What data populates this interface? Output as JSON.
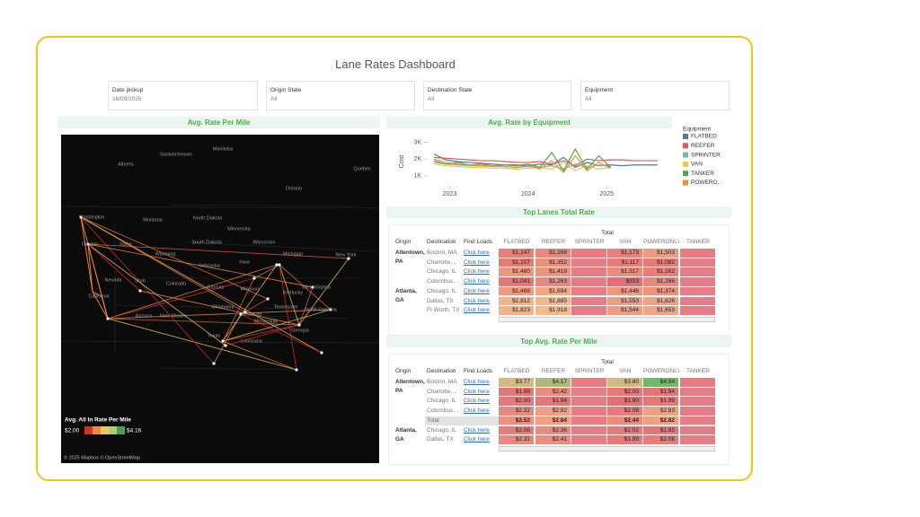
{
  "header": {
    "title": "Lane Rates Dashboard"
  },
  "filters": [
    {
      "label": "Date pickup",
      "value": "16/09/2025"
    },
    {
      "label": "Origin State",
      "value": "All"
    },
    {
      "label": "Destination State",
      "value": "All"
    },
    {
      "label": "Equipment",
      "value": "All"
    }
  ],
  "map": {
    "title": "Avg. Rate Per Mile",
    "labels": [
      "Alberta",
      "Saskatchewan",
      "Manitoba",
      "Ontario",
      "Quebec",
      "Washington",
      "Montana",
      "North Dakota",
      "Minnesota",
      "Oregon",
      "Idaho",
      "Wyoming",
      "South Dakota",
      "Wisconsin",
      "Michigan",
      "New York",
      "Nebraska",
      "Iowa",
      "Nevada",
      "Utah",
      "Colorado",
      "Kansas",
      "Missouri",
      "Kentucky",
      "West Virginia",
      "North Carolina",
      "California",
      "Arizona",
      "New Mexico",
      "Oklahoma",
      "Arkansas",
      "Tennessee",
      "Mississippi",
      "Georgia",
      "Texas",
      "Louisiana"
    ],
    "legend": {
      "title": "Avg. All In Rate Per Mile",
      "min_label": "$2.00",
      "max_label": "$4.16",
      "colors": [
        "#d7302b",
        "#f08a3c",
        "#f5c45e",
        "#a9cf72",
        "#4f9a4d"
      ]
    },
    "attribution": "© 2025 Mapbox © OpenStreetMap"
  },
  "chart_data": {
    "type": "line",
    "title": "Avg. Rate by Equipment",
    "y_label": "Cost",
    "legend_title": "Equipment",
    "x": [
      2022.8,
      2022.95,
      2023.1,
      2023.25,
      2023.4,
      2023.55,
      2023.7,
      2023.85,
      2024.0,
      2024.15,
      2024.3,
      2024.45,
      2024.6,
      2024.75,
      2024.9,
      2025.05,
      2025.2,
      2025.35,
      2025.5,
      2025.65
    ],
    "xlim": [
      2022.8,
      2025.65
    ],
    "xticks": [
      2023,
      2024,
      2025
    ],
    "ylim": [
      400,
      3300
    ],
    "yticks": [
      {
        "value": 1000,
        "label": "1K"
      },
      {
        "value": 2000,
        "label": "2K"
      },
      {
        "value": 3000,
        "label": "3K"
      }
    ],
    "series": [
      {
        "name": "FLATBED",
        "color": "#4e79a7",
        "values": [
          2300,
          1950,
          1850,
          1800,
          1750,
          1700,
          1650,
          1650,
          1600,
          1700,
          1650,
          2100,
          1500,
          1800,
          1600,
          1650,
          1600,
          1650,
          1650,
          1650
        ]
      },
      {
        "name": "REEFER",
        "color": "#e15759",
        "values": [
          2100,
          2050,
          2000,
          1950,
          1900,
          1900,
          1850,
          1800,
          1800,
          1850,
          1700,
          1900,
          1600,
          2000,
          1900,
          1950,
          1950,
          1900,
          1900,
          1900
        ]
      },
      {
        "name": "SPRINTER",
        "color": "#76b7b2",
        "values": [
          1800,
          1700,
          1650,
          1600,
          1600,
          1550,
          1550,
          1500,
          1550,
          1500,
          1600,
          1400,
          1700,
          1500,
          1650,
          1550,
          null,
          null,
          null,
          null
        ]
      },
      {
        "name": "VAN",
        "color": "#edc948",
        "values": [
          1700,
          1600,
          1550,
          1500,
          1500,
          1450,
          1450,
          1400,
          1450,
          1500,
          1400,
          1800,
          1300,
          1600,
          1400,
          1500,
          null,
          null,
          null,
          null
        ]
      },
      {
        "name": "TANKER",
        "color": "#59a14f",
        "values": [
          1900,
          1700,
          1800,
          1650,
          1700,
          1600,
          1650,
          1600,
          1700,
          1500,
          2400,
          1300,
          2600,
          1400,
          2200,
          1500,
          null,
          null,
          null,
          null
        ]
      },
      {
        "name": "POWERO..",
        "color": "#f28e2b",
        "values": [
          2000,
          1800,
          1700,
          1650,
          1600,
          1600,
          1550,
          1500,
          1600,
          1400,
          1900,
          1200,
          2200,
          1300,
          1800,
          1450,
          null,
          null,
          null,
          null
        ]
      }
    ]
  },
  "tables": [
    {
      "title": "Top Lanes Total Rate",
      "header_group": "Total",
      "colors": [
        "#e36f76",
        "#f6b98a"
      ],
      "columns": [
        "Origin",
        "Destination",
        "Find Loads",
        "FLATBED",
        "REEFER",
        "SPRINTER",
        "VAN",
        "POWERONLY",
        "TANKER"
      ],
      "groups": [
        {
          "origin": "Allentown, PA",
          "rows": [
            {
              "destination": "Boston, MA",
              "link": "Click here",
              "cells": [
                "$1,147",
                "$1,268",
                null,
                "$1,173",
                "$1,503",
                null
              ]
            },
            {
              "destination": "Charlotte, ..",
              "link": "Click here",
              "cells": [
                "$1,107",
                "$1,352",
                null,
                "$1,117",
                "$1,082",
                null
              ]
            },
            {
              "destination": "Chicago, IL",
              "link": "Click here",
              "cells": [
                "$1,460",
                "$1,419",
                null,
                "$1,317",
                "$1,162",
                null
              ]
            },
            {
              "destination": "Columbus, ..",
              "link": "Click here",
              "cells": [
                "$1,041",
                "$1,263",
                null,
                "$933",
                "$1,266",
                null
              ]
            }
          ]
        },
        {
          "origin": "Atlanta, GA",
          "rows": [
            {
              "destination": "Chicago, IL",
              "link": "Click here",
              "cells": [
                "$1,488",
                "$1,694",
                null,
                "$1,446",
                "$1,374",
                null
              ]
            },
            {
              "destination": "Dallas, TX",
              "link": "Click here",
              "cells": [
                "$1,812",
                "$1,885",
                null,
                "$1,553",
                "$1,626",
                null
              ]
            },
            {
              "destination": "Ft Worth, TX",
              "link": "Click here",
              "cells": [
                "$1,823",
                "$1,918",
                null,
                "$1,544",
                "$1,653",
                null
              ]
            }
          ]
        }
      ]
    },
    {
      "title": "Top Avg. Rate Per Mile",
      "header_group": "Total",
      "colors": [
        "#e36f76",
        "#f6b98a",
        "#6fb96b"
      ],
      "columns": [
        "Origin",
        "Destination",
        "Find Loads",
        "FLATBED",
        "REEFER",
        "SPRINTER",
        "VAN",
        "POWERONLY",
        "TANKER"
      ],
      "groups": [
        {
          "origin": "Allentown, PA",
          "rows": [
            {
              "destination": "Boston, MA",
              "link": "Click here",
              "cells": [
                "$3.77",
                "$4.17",
                null,
                "$3.80",
                "$4.94",
                null
              ]
            },
            {
              "destination": "Charlotte, ..",
              "link": "Click here",
              "cells": [
                "$1.98",
                "$2.42",
                null,
                "$2.00",
                "$1.94",
                null
              ]
            },
            {
              "destination": "Chicago, IL",
              "link": "Click here",
              "cells": [
                "$2.00",
                "$1.94",
                null,
                "$1.80",
                "$1.99",
                null
              ]
            },
            {
              "destination": "Columbus, ..",
              "link": "Click here",
              "cells": [
                "$2.32",
                "$2.82",
                null,
                "$2.08",
                "$2.83",
                null
              ]
            },
            {
              "destination": "Total",
              "cells": [
                "$2.52",
                "$2.84",
                null,
                "$2.44",
                "$2.82",
                null
              ]
            }
          ]
        },
        {
          "origin": "Atlanta, GA",
          "rows": [
            {
              "destination": "Chicago, IL",
              "link": "Click here",
              "cells": [
                "$2.08",
                "$2.36",
                null,
                "$2.02",
                "$1.92",
                null
              ]
            },
            {
              "destination": "Dallas, TX",
              "link": "Click here",
              "cells": [
                "$2.32",
                "$2.41",
                null,
                "$1.99",
                "$2.08",
                null
              ]
            }
          ]
        }
      ]
    }
  ]
}
